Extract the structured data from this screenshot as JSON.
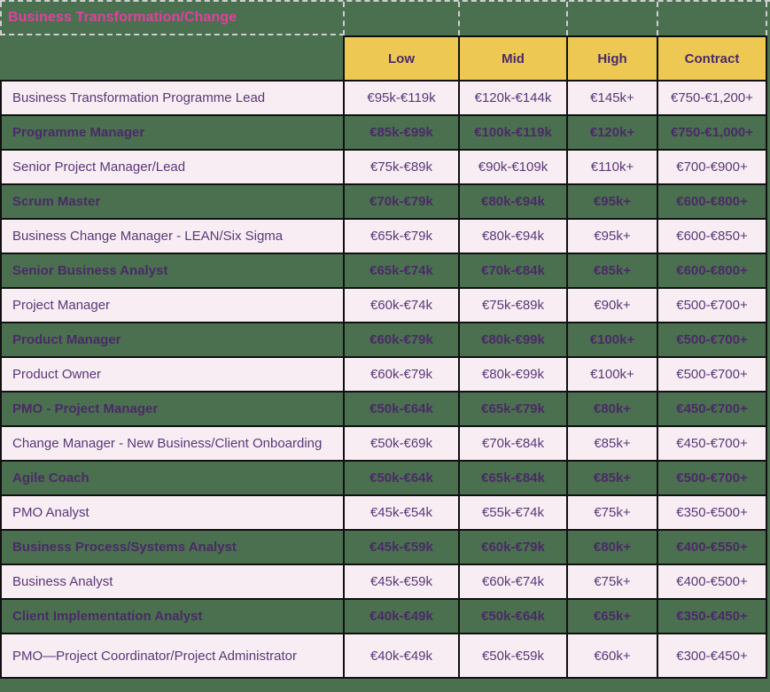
{
  "title": "Business Transformation/Change",
  "colors": {
    "background_green": "#4a7050",
    "header_yellow": "#edc853",
    "row_pink": "#f9edf4",
    "text_purple": "#583878",
    "bold_row_text_purple": "#4a2a66",
    "title_magenta": "#e0419f",
    "border_black": "#101010",
    "dashed_line_gray": "#cfcfcf"
  },
  "table": {
    "columns": [
      "Low",
      "Mid",
      "High",
      "Contract"
    ],
    "rows": [
      {
        "role": "Business Transformation Programme Lead",
        "low": "€95k-€119k",
        "mid": "€120k-€144k",
        "high": "€145k+",
        "contract": "€750-€1,200+"
      },
      {
        "role": "Programme Manager",
        "low": "€85k-€99k",
        "mid": "€100k-€119k",
        "high": "€120k+",
        "contract": "€750-€1,000+"
      },
      {
        "role": "Senior Project Manager/Lead",
        "low": "€75k-€89k",
        "mid": "€90k-€109k",
        "high": "€110k+",
        "contract": "€700-€900+"
      },
      {
        "role": "Scrum Master",
        "low": "€70k-€79k",
        "mid": "€80k-€94k",
        "high": "€95k+",
        "contract": "€600-€800+"
      },
      {
        "role": "Business Change Manager - LEAN/Six Sigma",
        "low": "€65k-€79k",
        "mid": "€80k-€94k",
        "high": "€95k+",
        "contract": "€600-€850+"
      },
      {
        "role": "Senior Business Analyst",
        "low": "€65k-€74k",
        "mid": "€70k-€84k",
        "high": "€85k+",
        "contract": "€600-€800+"
      },
      {
        "role": "Project Manager",
        "low": "€60k-€74k",
        "mid": "€75k-€89k",
        "high": "€90k+",
        "contract": "€500-€700+"
      },
      {
        "role": "Product Manager",
        "low": "€60k-€79k",
        "mid": "€80k-€99k",
        "high": "€100k+",
        "contract": "€500-€700+"
      },
      {
        "role": "Product Owner",
        "low": "€60k-€79k",
        "mid": "€80k-€99k",
        "high": "€100k+",
        "contract": "€500-€700+"
      },
      {
        "role": "PMO - Project Manager",
        "low": "€50k-€64k",
        "mid": "€65k-€79k",
        "high": "€80k+",
        "contract": "€450-€700+"
      },
      {
        "role": "Change Manager - New Business/Client Onboarding",
        "low": "€50k-€69k",
        "mid": "€70k-€84k",
        "high": "€85k+",
        "contract": "€450-€700+"
      },
      {
        "role": "Agile Coach",
        "low": "€50k-€64k",
        "mid": "€65k-€84k",
        "high": "€85k+",
        "contract": "€500-€700+"
      },
      {
        "role": "PMO Analyst",
        "low": "€45k-€54k",
        "mid": "€55k-€74k",
        "high": "€75k+",
        "contract": "€350-€500+"
      },
      {
        "role": "Business Process/Systems Analyst",
        "low": "€45k-€59k",
        "mid": "€60k-€79k",
        "high": "€80k+",
        "contract": "€400-€550+"
      },
      {
        "role": "Business Analyst",
        "low": "€45k-€59k",
        "mid": "€60k-€74k",
        "high": "€75k+",
        "contract": "€400-€500+"
      },
      {
        "role": "Client Implementation Analyst",
        "low": "€40k-€49k",
        "mid": "€50k-€64k",
        "high": "€65k+",
        "contract": "€350-€450+"
      },
      {
        "role": "PMO—Project Coordinator/Project Administrator",
        "low": "€40k-€49k",
        "mid": "€50k-€59k",
        "high": "€60k+",
        "contract": "€300-€450+"
      }
    ]
  }
}
